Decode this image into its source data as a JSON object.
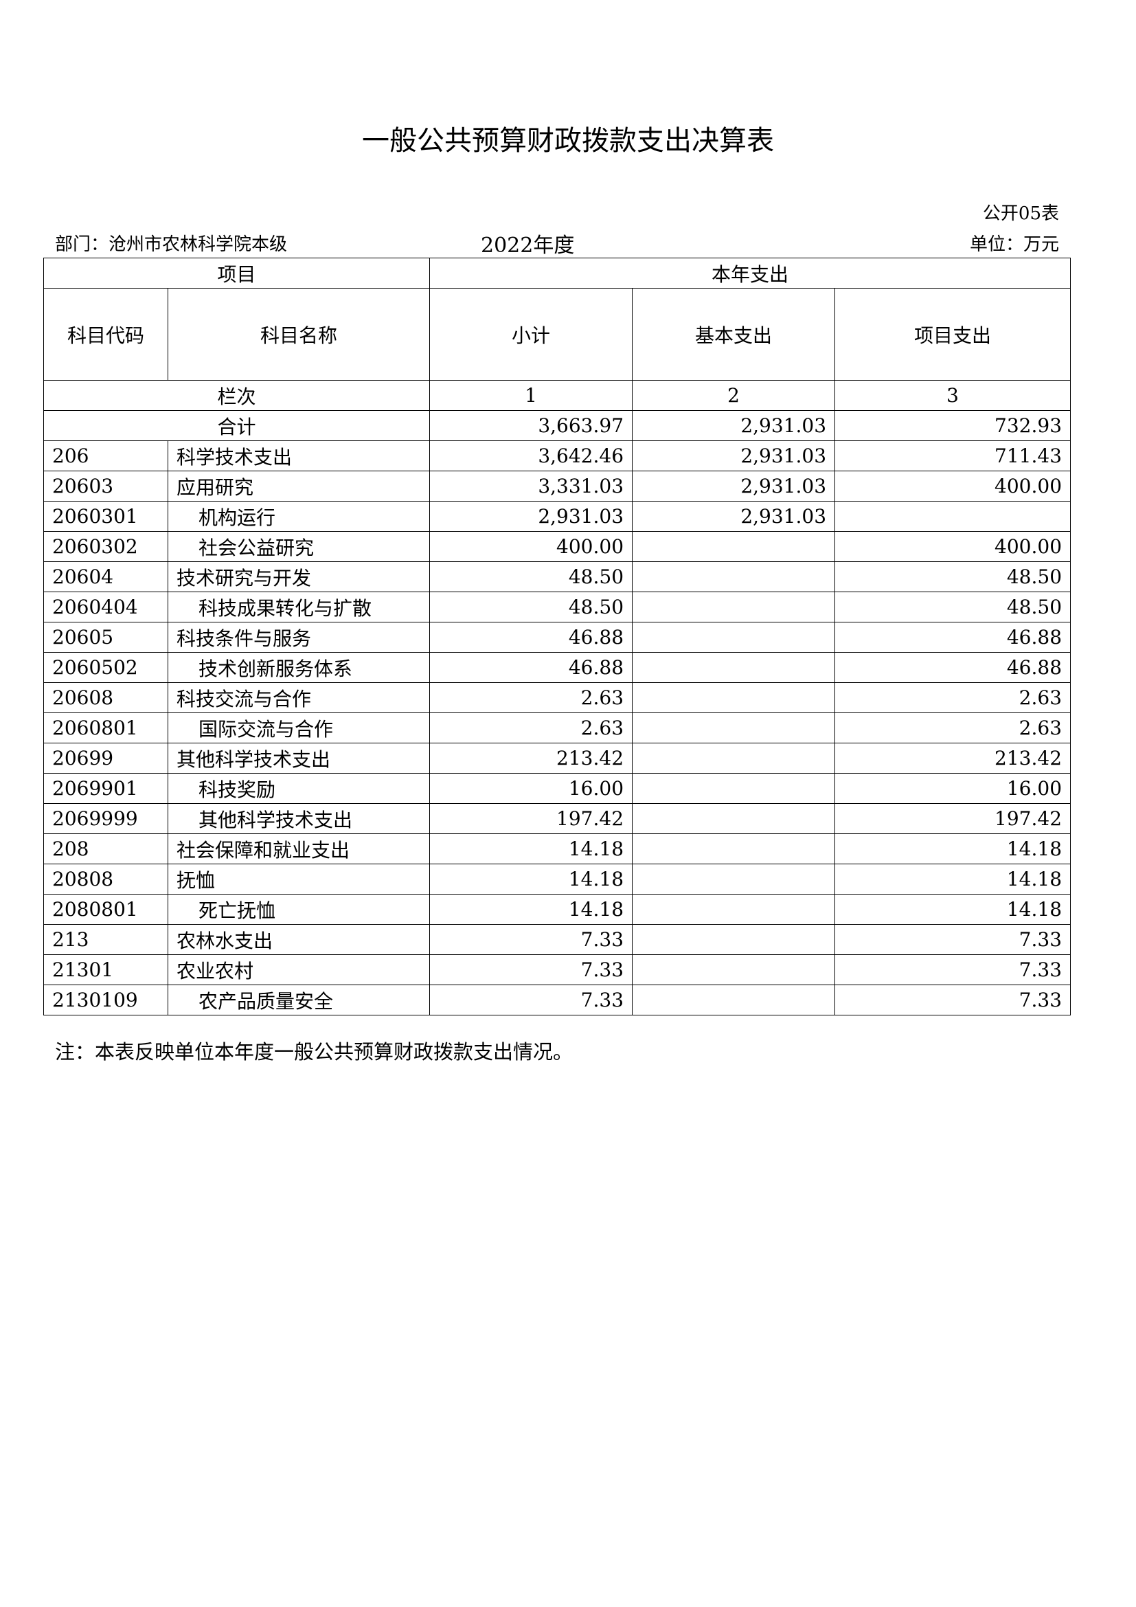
{
  "title": "一般公共预算财政拨款支出决算表",
  "form_no": "公开05表",
  "department": "部门：沧州市农林科学院本级",
  "year": "2022年度",
  "unit": "单位：万元",
  "header": {
    "item": "项目",
    "current_year": "本年支出",
    "code": "科目代码",
    "name": "科目名称",
    "subtotal": "小计",
    "basic": "基本支出",
    "project": "项目支出",
    "column_label": "栏次",
    "col1": "1",
    "col2": "2",
    "col3": "3"
  },
  "total": {
    "label": "合计",
    "subtotal": "3,663.97",
    "basic": "2,931.03",
    "project": "732.93"
  },
  "rows": [
    {
      "code": "206",
      "name": "科学技术支出",
      "subtotal": "3,642.46",
      "basic": "2,931.03",
      "project": "711.43"
    },
    {
      "code": "20603",
      "name": "应用研究",
      "subtotal": "3,331.03",
      "basic": "2,931.03",
      "project": "400.00"
    },
    {
      "code": "2060301",
      "name": "机构运行",
      "subtotal": "2,931.03",
      "basic": "2,931.03",
      "project": ""
    },
    {
      "code": "2060302",
      "name": "社会公益研究",
      "subtotal": "400.00",
      "basic": "",
      "project": "400.00"
    },
    {
      "code": "20604",
      "name": "技术研究与开发",
      "subtotal": "48.50",
      "basic": "",
      "project": "48.50"
    },
    {
      "code": "2060404",
      "name": "科技成果转化与扩散",
      "subtotal": "48.50",
      "basic": "",
      "project": "48.50"
    },
    {
      "code": "20605",
      "name": "科技条件与服务",
      "subtotal": "46.88",
      "basic": "",
      "project": "46.88"
    },
    {
      "code": "2060502",
      "name": "技术创新服务体系",
      "subtotal": "46.88",
      "basic": "",
      "project": "46.88"
    },
    {
      "code": "20608",
      "name": "科技交流与合作",
      "subtotal": "2.63",
      "basic": "",
      "project": "2.63"
    },
    {
      "code": "2060801",
      "name": "国际交流与合作",
      "subtotal": "2.63",
      "basic": "",
      "project": "2.63"
    },
    {
      "code": "20699",
      "name": "其他科学技术支出",
      "subtotal": "213.42",
      "basic": "",
      "project": "213.42"
    },
    {
      "code": "2069901",
      "name": "科技奖励",
      "subtotal": "16.00",
      "basic": "",
      "project": "16.00"
    },
    {
      "code": "2069999",
      "name": "其他科学技术支出",
      "subtotal": "197.42",
      "basic": "",
      "project": "197.42"
    },
    {
      "code": "208",
      "name": "社会保障和就业支出",
      "subtotal": "14.18",
      "basic": "",
      "project": "14.18"
    },
    {
      "code": "20808",
      "name": "抚恤",
      "subtotal": "14.18",
      "basic": "",
      "project": "14.18"
    },
    {
      "code": "2080801",
      "name": "死亡抚恤",
      "subtotal": "14.18",
      "basic": "",
      "project": "14.18"
    },
    {
      "code": "213",
      "name": "农林水支出",
      "subtotal": "7.33",
      "basic": "",
      "project": "7.33"
    },
    {
      "code": "21301",
      "name": "农业农村",
      "subtotal": "7.33",
      "basic": "",
      "project": "7.33"
    },
    {
      "code": "2130109",
      "name": "农产品质量安全",
      "subtotal": "7.33",
      "basic": "",
      "project": "7.33"
    }
  ],
  "note": "注：本表反映单位本年度一般公共预算财政拨款支出情况。"
}
